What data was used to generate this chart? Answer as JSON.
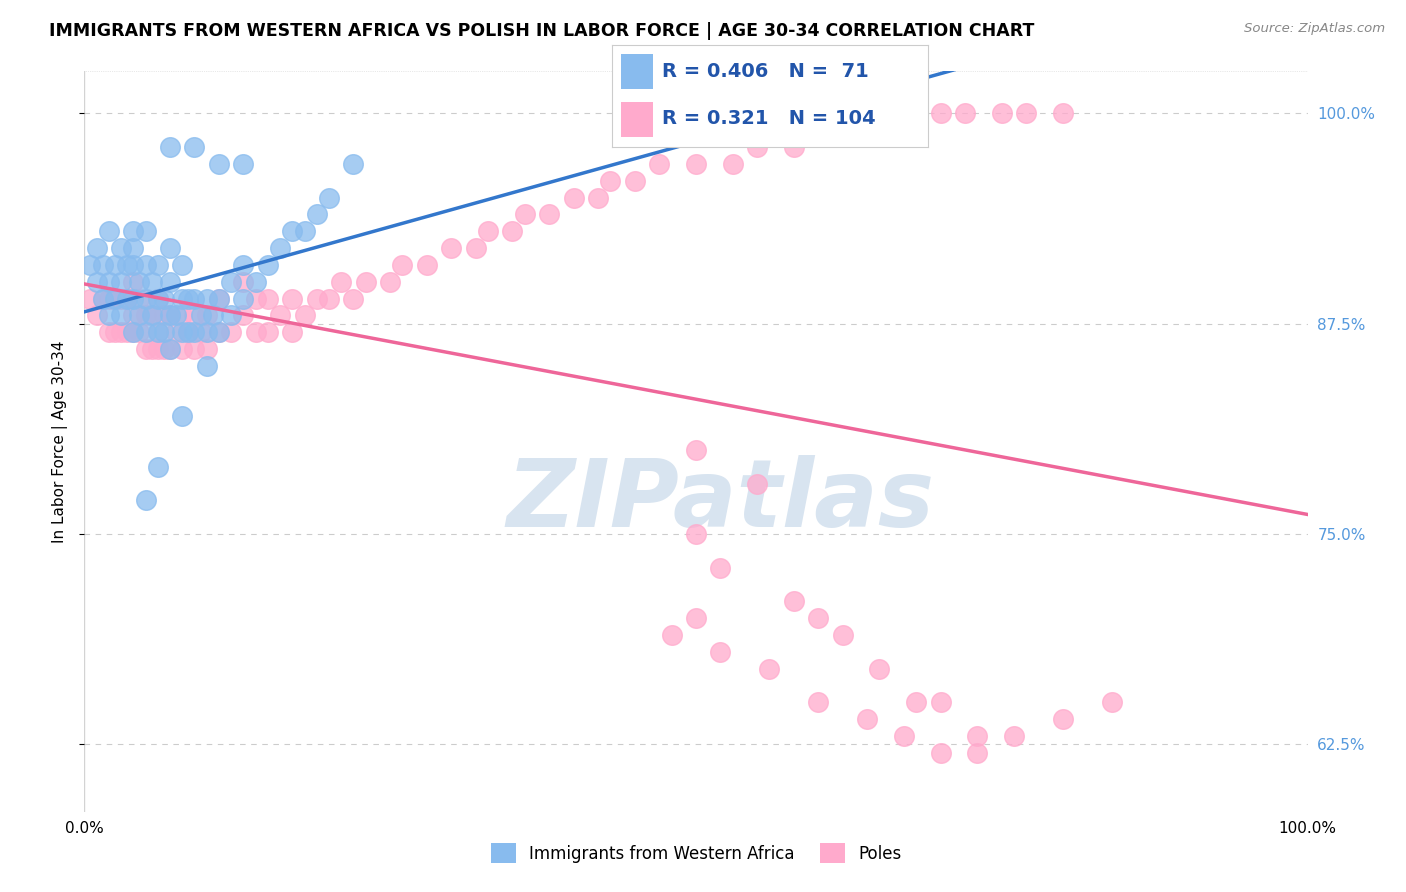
{
  "title": "IMMIGRANTS FROM WESTERN AFRICA VS POLISH IN LABOR FORCE | AGE 30-34 CORRELATION CHART",
  "source": "Source: ZipAtlas.com",
  "ylabel": "In Labor Force | Age 30-34",
  "xlim": [
    0.0,
    1.0
  ],
  "ylim": [
    0.585,
    1.025
  ],
  "yticks": [
    0.625,
    0.75,
    0.875,
    1.0
  ],
  "ytick_labels": [
    "62.5%",
    "75.0%",
    "87.5%",
    "100.0%"
  ],
  "xtick_labels": [
    "0.0%",
    "100.0%"
  ],
  "legend_blue_label": "Immigrants from Western Africa",
  "legend_pink_label": "Poles",
  "R_blue": 0.406,
  "N_blue": 71,
  "R_pink": 0.321,
  "N_pink": 104,
  "blue_color": "#88bbee",
  "pink_color": "#ffaacc",
  "trend_blue_color": "#3377cc",
  "trend_pink_color": "#ee6699",
  "watermark_color": "#d8e4f0",
  "title_fontsize": 12.5,
  "axis_label_fontsize": 11,
  "tick_fontsize": 11,
  "blue_scatter_x": [
    0.005,
    0.01,
    0.01,
    0.015,
    0.015,
    0.02,
    0.02,
    0.02,
    0.025,
    0.025,
    0.03,
    0.03,
    0.03,
    0.035,
    0.035,
    0.04,
    0.04,
    0.04,
    0.04,
    0.045,
    0.045,
    0.05,
    0.05,
    0.05,
    0.05,
    0.055,
    0.055,
    0.06,
    0.06,
    0.06,
    0.065,
    0.065,
    0.07,
    0.07,
    0.07,
    0.07,
    0.075,
    0.08,
    0.08,
    0.08,
    0.085,
    0.085,
    0.09,
    0.09,
    0.095,
    0.1,
    0.1,
    0.105,
    0.11,
    0.11,
    0.12,
    0.12,
    0.13,
    0.13,
    0.14,
    0.15,
    0.16,
    0.17,
    0.18,
    0.19,
    0.2,
    0.22,
    0.1,
    0.08,
    0.06,
    0.05,
    0.04,
    0.07,
    0.09,
    0.11,
    0.13
  ],
  "blue_scatter_y": [
    0.91,
    0.9,
    0.92,
    0.89,
    0.91,
    0.88,
    0.9,
    0.93,
    0.89,
    0.91,
    0.88,
    0.9,
    0.92,
    0.89,
    0.91,
    0.87,
    0.89,
    0.91,
    0.93,
    0.88,
    0.9,
    0.87,
    0.89,
    0.91,
    0.93,
    0.88,
    0.9,
    0.87,
    0.89,
    0.91,
    0.87,
    0.89,
    0.86,
    0.88,
    0.9,
    0.92,
    0.88,
    0.87,
    0.89,
    0.91,
    0.87,
    0.89,
    0.87,
    0.89,
    0.88,
    0.87,
    0.89,
    0.88,
    0.87,
    0.89,
    0.88,
    0.9,
    0.89,
    0.91,
    0.9,
    0.91,
    0.92,
    0.93,
    0.93,
    0.94,
    0.95,
    0.97,
    0.85,
    0.82,
    0.79,
    0.77,
    0.92,
    0.98,
    0.98,
    0.97,
    0.97
  ],
  "pink_scatter_x": [
    0.005,
    0.01,
    0.015,
    0.02,
    0.02,
    0.025,
    0.025,
    0.03,
    0.03,
    0.035,
    0.035,
    0.04,
    0.04,
    0.04,
    0.045,
    0.045,
    0.05,
    0.05,
    0.055,
    0.055,
    0.06,
    0.06,
    0.06,
    0.065,
    0.065,
    0.07,
    0.07,
    0.075,
    0.08,
    0.08,
    0.085,
    0.09,
    0.09,
    0.095,
    0.1,
    0.1,
    0.11,
    0.11,
    0.12,
    0.13,
    0.13,
    0.14,
    0.14,
    0.15,
    0.15,
    0.16,
    0.17,
    0.17,
    0.18,
    0.19,
    0.2,
    0.21,
    0.22,
    0.23,
    0.25,
    0.26,
    0.28,
    0.3,
    0.32,
    0.33,
    0.35,
    0.36,
    0.38,
    0.4,
    0.42,
    0.43,
    0.45,
    0.47,
    0.5,
    0.53,
    0.55,
    0.58,
    0.6,
    0.63,
    0.65,
    0.67,
    0.7,
    0.72,
    0.75,
    0.77,
    0.8,
    0.5,
    0.55,
    0.5,
    0.52,
    0.58,
    0.6,
    0.62,
    0.65,
    0.68,
    0.7,
    0.73,
    0.5,
    0.48,
    0.52,
    0.56,
    0.6,
    0.64,
    0.67,
    0.7,
    0.73,
    0.76,
    0.8,
    0.84
  ],
  "pink_scatter_y": [
    0.89,
    0.88,
    0.89,
    0.87,
    0.89,
    0.87,
    0.89,
    0.87,
    0.89,
    0.87,
    0.89,
    0.87,
    0.88,
    0.9,
    0.87,
    0.89,
    0.86,
    0.88,
    0.86,
    0.88,
    0.86,
    0.87,
    0.89,
    0.86,
    0.88,
    0.86,
    0.88,
    0.87,
    0.86,
    0.88,
    0.87,
    0.86,
    0.88,
    0.87,
    0.86,
    0.88,
    0.87,
    0.89,
    0.87,
    0.88,
    0.9,
    0.87,
    0.89,
    0.87,
    0.89,
    0.88,
    0.87,
    0.89,
    0.88,
    0.89,
    0.89,
    0.9,
    0.89,
    0.9,
    0.9,
    0.91,
    0.91,
    0.92,
    0.92,
    0.93,
    0.93,
    0.94,
    0.94,
    0.95,
    0.95,
    0.96,
    0.96,
    0.97,
    0.97,
    0.97,
    0.98,
    0.98,
    0.99,
    0.99,
    0.99,
    1.0,
    1.0,
    1.0,
    1.0,
    1.0,
    1.0,
    0.8,
    0.78,
    0.75,
    0.73,
    0.71,
    0.7,
    0.69,
    0.67,
    0.65,
    0.65,
    0.63,
    0.7,
    0.69,
    0.68,
    0.67,
    0.65,
    0.64,
    0.63,
    0.62,
    0.62,
    0.63,
    0.64,
    0.65
  ]
}
